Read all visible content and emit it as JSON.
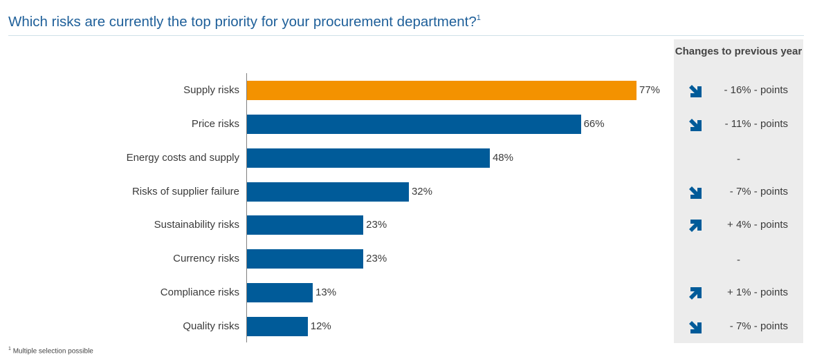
{
  "title": "Which risks are currently the top priority for your procurement department?",
  "title_footnote_mark": "1",
  "changes_header": "Changes to previous year",
  "footnote": "Multiple selection possible",
  "footnote_mark": "1",
  "colors": {
    "highlight": "#f39200",
    "bar": "#005b99",
    "title": "#1e5f99",
    "panel": "#ececec",
    "arrow": "#005b99"
  },
  "chart_data": {
    "type": "bar",
    "orientation": "horizontal",
    "categories": [
      "Supply risks",
      "Price risks",
      "Energy costs and supply",
      "Risks of supplier failure",
      "Sustainability risks",
      "Currency risks",
      "Compliance risks",
      "Quality risks"
    ],
    "values": [
      77,
      66,
      48,
      32,
      23,
      23,
      13,
      12
    ],
    "value_labels": [
      "77%",
      "66%",
      "48%",
      "32%",
      "23%",
      "23%",
      "13%",
      "12%"
    ],
    "unit": "%",
    "highlight_index": 0,
    "xlim": [
      0,
      100
    ],
    "grid": false,
    "changes": [
      {
        "direction": "down",
        "text": "- 16% - points"
      },
      {
        "direction": "down",
        "text": "- 11% - points"
      },
      {
        "direction": "none",
        "text": "-"
      },
      {
        "direction": "down",
        "text": "- 7% - points"
      },
      {
        "direction": "up",
        "text": "+ 4% - points"
      },
      {
        "direction": "none",
        "text": "-"
      },
      {
        "direction": "up",
        "text": "+ 1% - points"
      },
      {
        "direction": "down",
        "text": "- 7% - points"
      }
    ]
  }
}
